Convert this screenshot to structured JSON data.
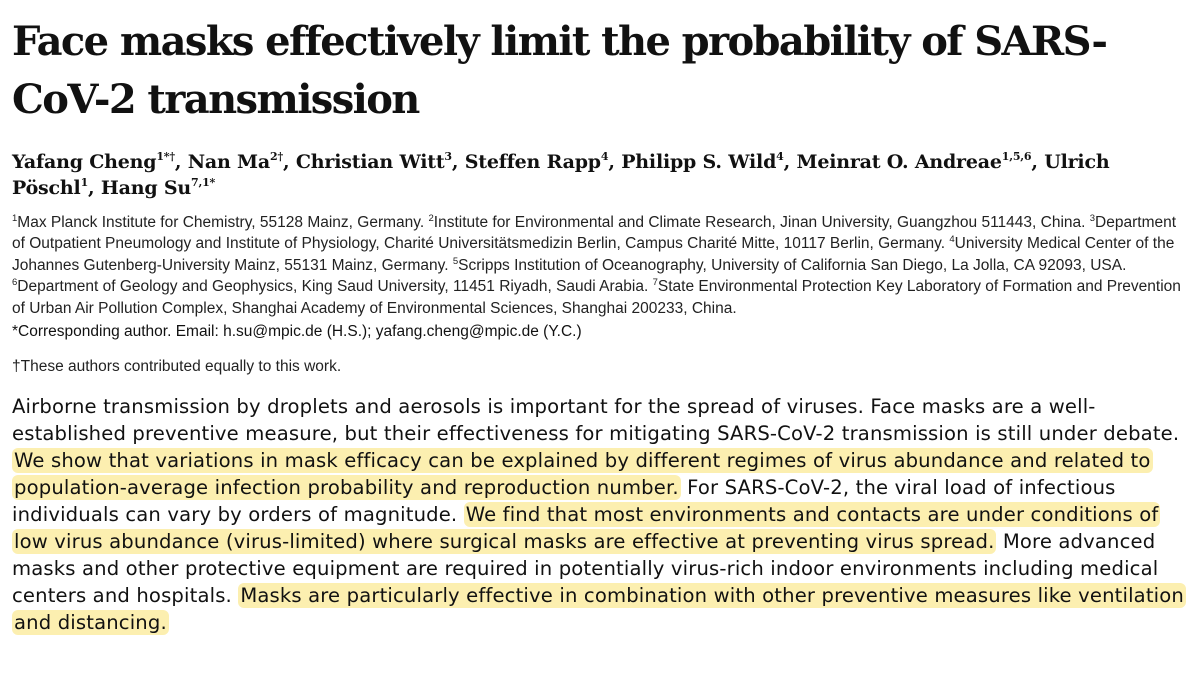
{
  "title": "Face masks effectively limit the probability of SARS-CoV-2 transmission",
  "authors": [
    {
      "name": "Yafang Cheng",
      "sup": "1*†"
    },
    {
      "name": "Nan Ma",
      "sup": "2†"
    },
    {
      "name": "Christian Witt",
      "sup": "3"
    },
    {
      "name": "Steffen Rapp",
      "sup": "4"
    },
    {
      "name": "Philipp S. Wild",
      "sup": "4"
    },
    {
      "name": "Meinrat O. Andreae",
      "sup": "1,5,6"
    },
    {
      "name": "Ulrich Pöschl",
      "sup": "1"
    },
    {
      "name": "Hang Su",
      "sup": "7,1*"
    }
  ],
  "affiliations": [
    {
      "num": "1",
      "text": "Max Planck Institute for Chemistry, 55128 Mainz, Germany."
    },
    {
      "num": "2",
      "text": "Institute for Environmental and Climate Research, Jinan University, Guangzhou 511443, China."
    },
    {
      "num": "3",
      "text": "Department of Outpatient Pneumology and Institute of Physiology, Charité Universitätsmedizin Berlin, Campus Charité Mitte, 10117 Berlin, Germany."
    },
    {
      "num": "4",
      "text": "University Medical Center of the Johannes Gutenberg-University Mainz, 55131 Mainz, Germany."
    },
    {
      "num": "5",
      "text": "Scripps Institution of Oceanography, University of California San Diego, La Jolla, CA 92093, USA."
    },
    {
      "num": "6",
      "text": "Department of Geology and Geophysics, King Saud University, 11451 Riyadh, Saudi Arabia."
    },
    {
      "num": "7",
      "text": "State Environmental Protection Key Laboratory of Formation and Prevention of Urban Air Pollution Complex, Shanghai Academy of Environmental Sciences, Shanghai 200233, China."
    }
  ],
  "corresponding": "*Corresponding author. Email: h.su@mpic.de (H.S.); yafang.cheng@mpic.de (Y.C.)",
  "equal_contribution": "†These authors contributed equally to this work.",
  "abstract": {
    "s1": "Airborne transmission by droplets and aerosols is important for the spread of viruses. Face masks are a well-established preventive measure, but their effectiveness for mitigating SARS-CoV-2 transmission is still under debate. ",
    "h1": "We show that variations in mask efficacy can be explained by different regimes of virus abundance and related to population-average infection probability and reproduction number.",
    "s2": " For SARS-CoV-2, the viral load of infectious individuals can vary by orders of magnitude. ",
    "h2": "We find that most environments and contacts are under conditions of low virus abundance (virus-limited) where surgical masks are effective at preventing virus spread.",
    "s3": " More advanced masks and other protective equipment are required in potentially virus-rich indoor environments including medical centers and hospitals. ",
    "h3": "Masks are particularly effective in combination with other preventive measures like ventilation and distancing.",
    "highlight_color": "#fcefb0"
  }
}
